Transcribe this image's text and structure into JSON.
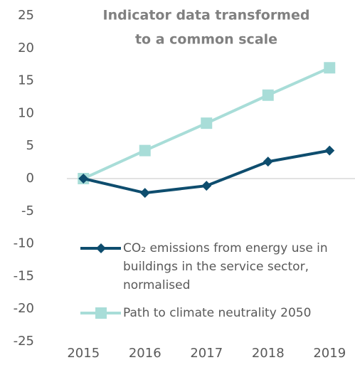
{
  "chart_data": {
    "type": "line",
    "title": [
      "Indicator data  transformed",
      "to a common scale"
    ],
    "categories": [
      "2015",
      "2016",
      "2017",
      "2018",
      "2019"
    ],
    "series": [
      {
        "name": "CO₂ emissions from energy use in buildings in the service sector, normalised",
        "color": "#0e4d6e",
        "marker": "diamond",
        "values": [
          0,
          -2.2,
          -1.1,
          2.6,
          4.3
        ]
      },
      {
        "name": "Path to climate neutrality 2050",
        "color": "#a8ddd8",
        "marker": "square",
        "values": [
          0,
          4.3,
          8.5,
          12.8,
          17.0
        ]
      }
    ],
    "ylim": [
      -25,
      25
    ],
    "yticks": [
      -25,
      -20,
      -15,
      -10,
      -5,
      0,
      5,
      10,
      15,
      20,
      25
    ]
  }
}
